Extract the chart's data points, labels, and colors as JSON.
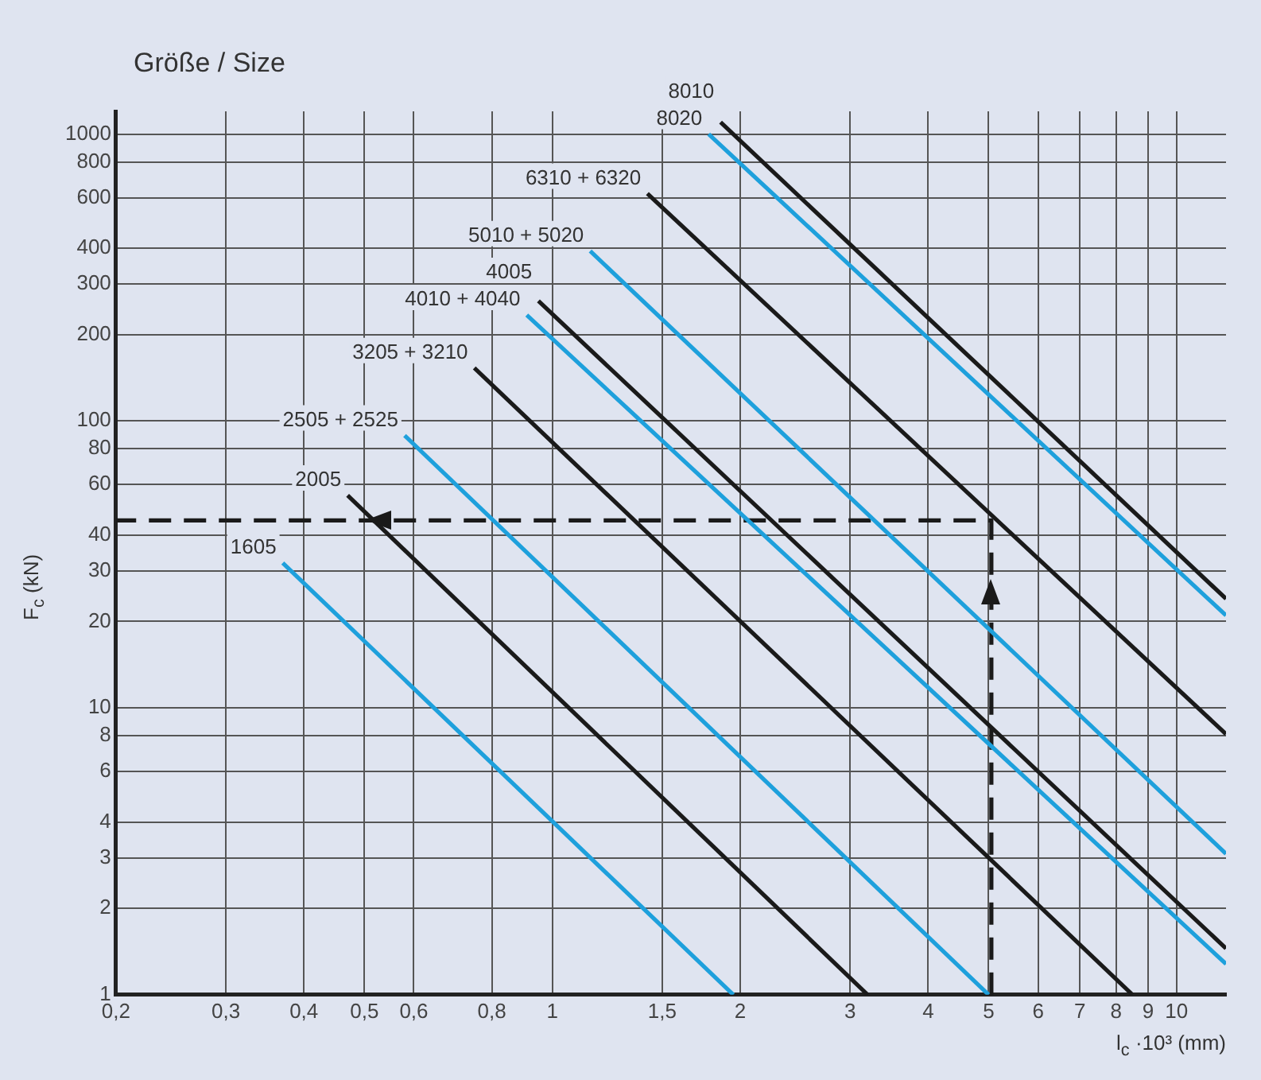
{
  "chart_data": {
    "type": "line",
    "title": "Größe / Size",
    "xlabel": "l$_{c}$ ·10³ (mm)",
    "ylabel": "F$_{c}$ (kN)",
    "log": "xy",
    "grid": true,
    "legend": false,
    "marker": "none",
    "line_style": "solid",
    "xlim": [
      0.2,
      12
    ],
    "ylim": [
      1,
      1200
    ],
    "xticks": [
      {
        "value": 0.2,
        "label": "0,2"
      },
      {
        "value": 0.3,
        "label": "0,3"
      },
      {
        "value": 0.4,
        "label": "0,4"
      },
      {
        "value": 0.5,
        "label": "0,5"
      },
      {
        "value": 0.6,
        "label": "0,6"
      },
      {
        "value": 0.8,
        "label": "0,8"
      },
      1,
      {
        "value": 1.5,
        "label": "1,5"
      },
      2,
      3,
      4,
      5,
      6,
      7,
      8,
      9,
      10
    ],
    "yticks": [
      1,
      2,
      3,
      4,
      6,
      8,
      10,
      20,
      30,
      40,
      60,
      80,
      100,
      200,
      300,
      400,
      600,
      800,
      1000
    ],
    "series": [
      {
        "name": "1605",
        "color": "#1ea0dc",
        "x": [
          0.37,
          1.95
        ],
        "values": [
          32,
          1
        ]
      },
      {
        "name": "2005",
        "color": "#1a1a1a",
        "x": [
          0.47,
          3.2
        ],
        "values": [
          55,
          1
        ]
      },
      {
        "name": "2505 + 2525",
        "color": "#1ea0dc",
        "x": [
          0.58,
          5
        ],
        "values": [
          89,
          1
        ]
      },
      {
        "name": "3205 + 3210",
        "color": "#1a1a1a",
        "x": [
          0.75,
          8.5
        ],
        "values": [
          153,
          1
        ]
      },
      {
        "name": "4010 + 4040",
        "color": "#1ea0dc",
        "x": [
          0.91,
          12
        ],
        "values": [
          234,
          1.28
        ]
      },
      {
        "name": "4005",
        "color": "#1a1a1a",
        "x": [
          0.95,
          12
        ],
        "values": [
          262,
          1.45
        ]
      },
      {
        "name": "5010 + 5020",
        "color": "#1ea0dc",
        "x": [
          1.15,
          12
        ],
        "values": [
          391,
          3.1
        ]
      },
      {
        "name": "6310 + 6320",
        "color": "#1a1a1a",
        "x": [
          1.42,
          12
        ],
        "values": [
          620,
          8.1
        ]
      },
      {
        "name": "8020",
        "color": "#1ea0dc",
        "x": [
          1.78,
          12
        ],
        "values": [
          1000,
          21
        ]
      },
      {
        "name": "8010",
        "color": "#1a1a1a",
        "x": [
          1.86,
          12
        ],
        "values": [
          1100,
          24
        ]
      },
      {
        "color": "#1a1a1a",
        "line_style": "dashed",
        "x": [
          5.05,
          5.05,
          0.2
        ],
        "values": [
          1,
          45,
          45
        ]
      }
    ]
  }
}
